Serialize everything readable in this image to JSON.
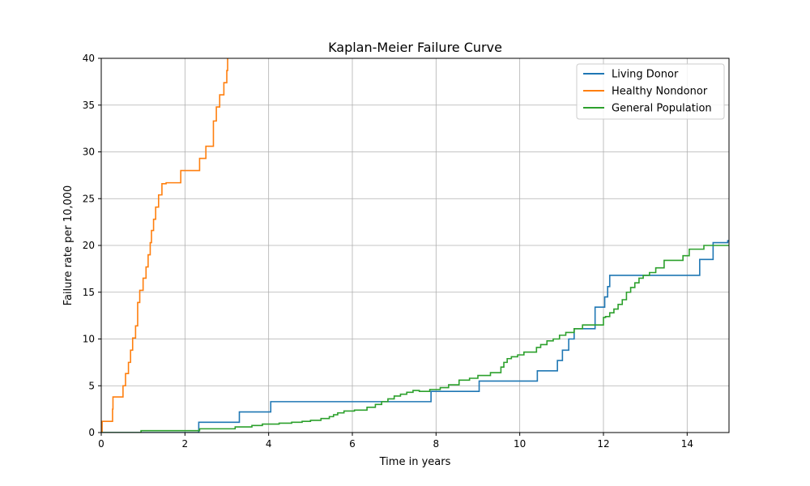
{
  "chart_data": {
    "type": "line",
    "title": "Kaplan-Meier Failure Curve",
    "xlabel": "Time in years",
    "ylabel": "Failure rate per 10,000",
    "xlim": [
      0,
      15
    ],
    "ylim": [
      0,
      40
    ],
    "x_ticks": [
      "0",
      "2",
      "4",
      "6",
      "8",
      "10",
      "12",
      "14"
    ],
    "y_ticks": [
      "0",
      "5",
      "10",
      "15",
      "20",
      "25",
      "30",
      "35",
      "40"
    ],
    "grid": true,
    "legend_position": "top-right",
    "series": [
      {
        "name": "Living Donor",
        "color": "#1f77b4",
        "step": true,
        "x": [
          0,
          2.33,
          3.3,
          4.05,
          7.88,
          9.03,
          10.42,
          10.9,
          11.02,
          11.17,
          11.3,
          11.8,
          12.03,
          12.1,
          12.15,
          14.3,
          14.62,
          14.97,
          15.0
        ],
        "y": [
          0,
          1.1,
          2.2,
          3.3,
          4.4,
          5.5,
          6.6,
          7.7,
          8.8,
          10.0,
          11.1,
          13.4,
          14.5,
          15.6,
          16.8,
          18.5,
          20.3,
          20.5,
          20.5
        ]
      },
      {
        "name": "Healthy Nondonor",
        "color": "#ff7f0e",
        "step": true,
        "x": [
          0,
          0.02,
          0.27,
          0.28,
          0.52,
          0.58,
          0.65,
          0.7,
          0.75,
          0.82,
          0.87,
          0.92,
          1.0,
          1.07,
          1.12,
          1.17,
          1.2,
          1.25,
          1.3,
          1.37,
          1.45,
          1.55,
          1.9,
          2.25,
          2.35,
          2.5,
          2.68,
          2.75,
          2.83,
          2.93,
          3.0,
          3.02
        ],
        "y": [
          0,
          1.2,
          2.5,
          3.8,
          5.0,
          6.3,
          7.5,
          8.8,
          10.1,
          11.4,
          13.9,
          15.2,
          16.5,
          17.7,
          19.0,
          20.3,
          21.6,
          22.8,
          24.1,
          25.4,
          26.6,
          26.7,
          28.0,
          28.0,
          29.3,
          30.6,
          33.3,
          34.8,
          36.1,
          37.4,
          38.7,
          40.0
        ]
      },
      {
        "name": "General Population",
        "color": "#2ca02c",
        "step": true,
        "x": [
          0,
          0.95,
          2.35,
          3.2,
          3.6,
          3.85,
          4.25,
          4.55,
          4.8,
          5.0,
          5.25,
          5.45,
          5.55,
          5.65,
          5.8,
          6.05,
          6.35,
          6.55,
          6.7,
          6.85,
          7.0,
          7.15,
          7.3,
          7.45,
          7.6,
          7.85,
          8.1,
          8.3,
          8.55,
          8.8,
          9.0,
          9.3,
          9.55,
          9.62,
          9.7,
          9.8,
          9.95,
          10.1,
          10.4,
          10.5,
          10.65,
          10.8,
          10.95,
          11.1,
          11.3,
          11.5,
          12.0,
          12.05,
          12.15,
          12.25,
          12.35,
          12.45,
          12.55,
          12.65,
          12.75,
          12.85,
          12.95,
          13.1,
          13.25,
          13.45,
          13.9,
          14.05,
          14.15,
          14.4,
          15.0
        ],
        "y": [
          0,
          0.2,
          0.4,
          0.6,
          0.75,
          0.9,
          1.0,
          1.1,
          1.2,
          1.3,
          1.5,
          1.7,
          1.9,
          2.1,
          2.3,
          2.4,
          2.7,
          3.0,
          3.3,
          3.6,
          3.9,
          4.1,
          4.3,
          4.5,
          4.4,
          4.6,
          4.8,
          5.1,
          5.6,
          5.8,
          6.1,
          6.4,
          7.0,
          7.5,
          7.9,
          8.1,
          8.3,
          8.6,
          9.1,
          9.4,
          9.8,
          10.0,
          10.4,
          10.7,
          11.1,
          11.5,
          12.3,
          12.4,
          12.8,
          13.2,
          13.7,
          14.2,
          15.0,
          15.5,
          16.0,
          16.5,
          16.8,
          17.1,
          17.6,
          18.4,
          18.9,
          19.6,
          19.6,
          20.0,
          20.0
        ]
      }
    ]
  }
}
